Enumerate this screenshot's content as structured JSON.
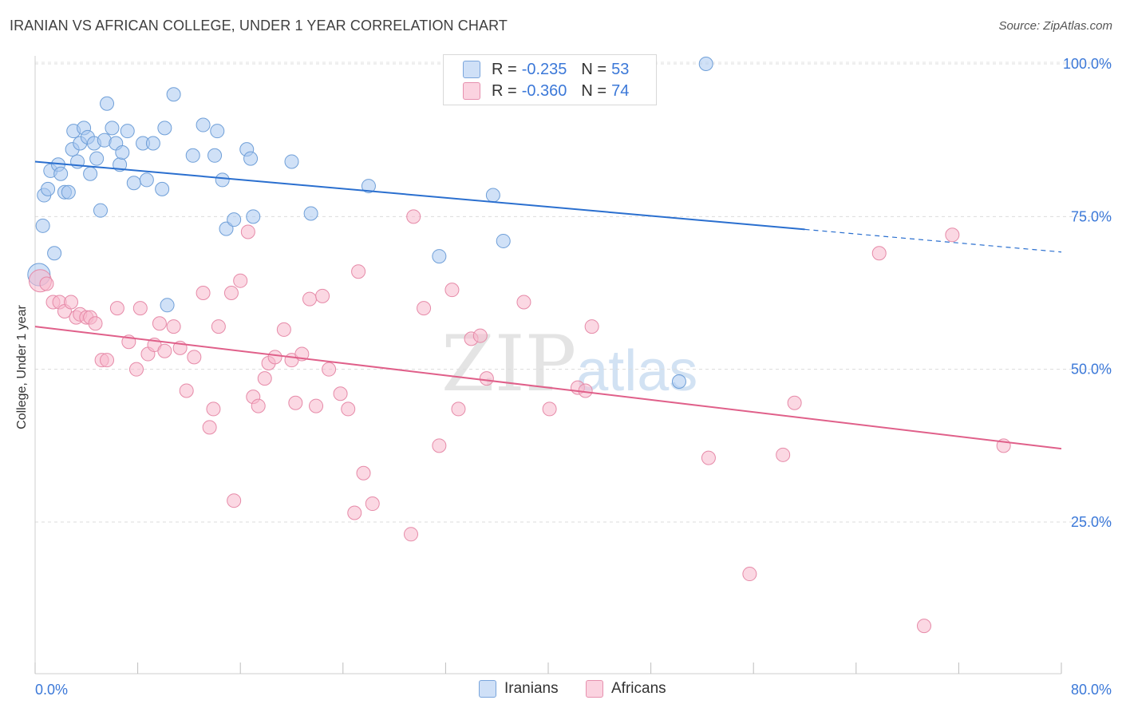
{
  "title": "IRANIAN VS AFRICAN COLLEGE, UNDER 1 YEAR CORRELATION CHART",
  "source": "Source: ZipAtlas.com",
  "watermark": {
    "zip": "ZIP",
    "atlas": "atlas"
  },
  "legend": {
    "rows": [
      {
        "r_label": "R =",
        "r_value": "-0.235",
        "n_label": "N =",
        "n_value": "53",
        "color": "#a9c8f0"
      },
      {
        "r_label": "R =",
        "r_value": "-0.360",
        "n_label": "N =",
        "n_value": "74",
        "color": "#f7b8cc"
      }
    ]
  },
  "bottom_legend": {
    "iranians": "Iranians",
    "africans": "Africans"
  },
  "chart_data": {
    "type": "scatter",
    "title": "IRANIAN VS AFRICAN COLLEGE, UNDER 1 YEAR CORRELATION CHART",
    "xlabel": "",
    "ylabel": "College, Under 1 year",
    "xlim": [
      0,
      80
    ],
    "ylim": [
      0,
      103
    ],
    "x_tick_labels": [
      "0.0%",
      "80.0%"
    ],
    "y_tick_labels": [
      "25.0%",
      "50.0%",
      "75.0%",
      "100.0%"
    ],
    "y_ticks": [
      25,
      50,
      75,
      100
    ],
    "grid": true,
    "legend_position": "top-center",
    "series": [
      {
        "name": "Iranians",
        "color": "#a9c8f0",
        "stroke": "#6f9fd8",
        "line_color": "#2a6fcf",
        "trend": {
          "x0": 0,
          "y0": 84.0,
          "x1": 60,
          "y1": 72.9,
          "dash_to_x": 80,
          "dash_to_y": 69.2
        },
        "points": [
          [
            0.3,
            65.5
          ],
          [
            0.6,
            73.5
          ],
          [
            0.7,
            78.5
          ],
          [
            1.0,
            79.5
          ],
          [
            1.2,
            82.5
          ],
          [
            1.5,
            69.0
          ],
          [
            1.8,
            83.5
          ],
          [
            2.0,
            82.0
          ],
          [
            2.3,
            79.0
          ],
          [
            2.6,
            79.0
          ],
          [
            2.9,
            86.0
          ],
          [
            3.0,
            89.0
          ],
          [
            3.3,
            84.0
          ],
          [
            3.5,
            87.0
          ],
          [
            3.8,
            89.5
          ],
          [
            4.1,
            88.0
          ],
          [
            4.3,
            82.0
          ],
          [
            4.6,
            87.0
          ],
          [
            4.8,
            84.5
          ],
          [
            5.1,
            76.0
          ],
          [
            5.4,
            87.5
          ],
          [
            5.6,
            93.5
          ],
          [
            6.0,
            89.5
          ],
          [
            6.3,
            87.0
          ],
          [
            6.6,
            83.5
          ],
          [
            6.8,
            85.5
          ],
          [
            7.2,
            89.0
          ],
          [
            7.7,
            80.5
          ],
          [
            8.4,
            87.0
          ],
          [
            8.7,
            81.0
          ],
          [
            9.2,
            87.0
          ],
          [
            9.9,
            79.5
          ],
          [
            10.1,
            89.5
          ],
          [
            10.3,
            60.5
          ],
          [
            10.8,
            95.0
          ],
          [
            12.3,
            85.0
          ],
          [
            13.1,
            90.0
          ],
          [
            14.0,
            85.0
          ],
          [
            14.2,
            89.0
          ],
          [
            14.6,
            81.0
          ],
          [
            14.9,
            73.0
          ],
          [
            15.5,
            74.5
          ],
          [
            16.5,
            86.0
          ],
          [
            16.8,
            84.5
          ],
          [
            17.0,
            75.0
          ],
          [
            20.0,
            84.0
          ],
          [
            21.5,
            75.5
          ],
          [
            26.0,
            80.0
          ],
          [
            31.5,
            68.5
          ],
          [
            35.7,
            78.5
          ],
          [
            36.5,
            71.0
          ],
          [
            50.2,
            48.0
          ],
          [
            52.3,
            100.0
          ]
        ]
      },
      {
        "name": "Africans",
        "color": "#f7b8cc",
        "stroke": "#e68aa8",
        "line_color": "#e0608a",
        "trend": {
          "x0": 0,
          "y0": 57.0,
          "x1": 80,
          "y1": 37.0
        },
        "points": [
          [
            0.4,
            64.5
          ],
          [
            0.9,
            64.0
          ],
          [
            1.4,
            61.0
          ],
          [
            1.9,
            61.0
          ],
          [
            2.3,
            59.5
          ],
          [
            2.8,
            61.0
          ],
          [
            3.2,
            58.5
          ],
          [
            3.5,
            59.0
          ],
          [
            4.0,
            58.5
          ],
          [
            4.3,
            58.5
          ],
          [
            4.7,
            57.5
          ],
          [
            5.2,
            51.5
          ],
          [
            5.6,
            51.5
          ],
          [
            6.4,
            60.0
          ],
          [
            7.3,
            54.5
          ],
          [
            7.9,
            50.0
          ],
          [
            8.2,
            60.0
          ],
          [
            8.8,
            52.5
          ],
          [
            9.3,
            54.0
          ],
          [
            9.7,
            57.5
          ],
          [
            10.1,
            53.0
          ],
          [
            10.8,
            57.0
          ],
          [
            11.3,
            53.5
          ],
          [
            11.8,
            46.5
          ],
          [
            12.4,
            52.0
          ],
          [
            13.1,
            62.5
          ],
          [
            13.6,
            40.5
          ],
          [
            13.9,
            43.5
          ],
          [
            14.3,
            57.0
          ],
          [
            15.3,
            62.5
          ],
          [
            15.5,
            28.5
          ],
          [
            16.0,
            64.5
          ],
          [
            16.6,
            72.5
          ],
          [
            17.0,
            45.5
          ],
          [
            17.4,
            44.0
          ],
          [
            17.9,
            48.5
          ],
          [
            18.2,
            51.0
          ],
          [
            18.7,
            52.0
          ],
          [
            19.4,
            56.5
          ],
          [
            20.0,
            51.5
          ],
          [
            20.3,
            44.5
          ],
          [
            20.8,
            52.5
          ],
          [
            21.4,
            61.5
          ],
          [
            21.9,
            44.0
          ],
          [
            22.4,
            62.0
          ],
          [
            22.9,
            50.0
          ],
          [
            23.8,
            46.0
          ],
          [
            24.4,
            43.5
          ],
          [
            24.9,
            26.5
          ],
          [
            25.2,
            66.0
          ],
          [
            25.6,
            33.0
          ],
          [
            26.3,
            28.0
          ],
          [
            29.3,
            23.0
          ],
          [
            29.5,
            75.0
          ],
          [
            30.3,
            60.0
          ],
          [
            31.5,
            37.5
          ],
          [
            32.5,
            63.0
          ],
          [
            33.0,
            43.5
          ],
          [
            34.0,
            55.0
          ],
          [
            34.7,
            55.5
          ],
          [
            35.2,
            48.5
          ],
          [
            38.1,
            61.0
          ],
          [
            40.1,
            43.5
          ],
          [
            42.3,
            47.0
          ],
          [
            42.9,
            46.5
          ],
          [
            43.4,
            57.0
          ],
          [
            52.5,
            35.5
          ],
          [
            55.7,
            16.5
          ],
          [
            58.3,
            36.0
          ],
          [
            59.2,
            44.5
          ],
          [
            65.8,
            69.0
          ],
          [
            69.3,
            8.0
          ],
          [
            71.5,
            72.0
          ],
          [
            75.5,
            37.5
          ]
        ]
      }
    ]
  }
}
